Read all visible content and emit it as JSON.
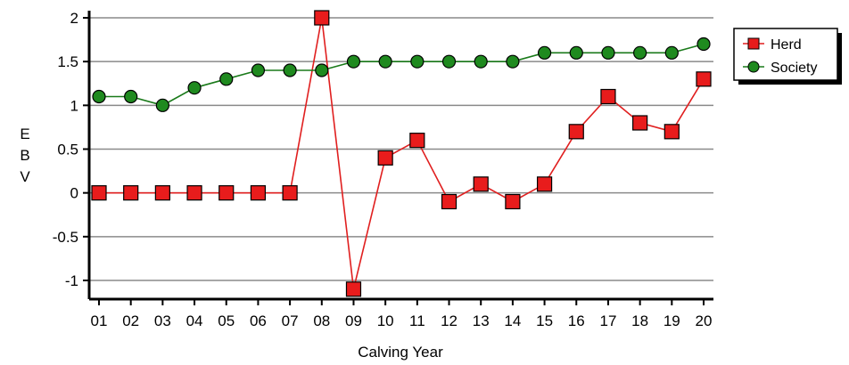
{
  "chart_data": {
    "type": "line",
    "title": "",
    "xlabel": "Calving Year",
    "ylabel": "E B V",
    "ylabel_letters": [
      "E",
      "B",
      "V"
    ],
    "categories": [
      "01",
      "02",
      "03",
      "04",
      "05",
      "06",
      "07",
      "08",
      "09",
      "10",
      "11",
      "12",
      "13",
      "14",
      "15",
      "16",
      "17",
      "18",
      "19",
      "20"
    ],
    "y_ticks": [
      "-1",
      "-0.5",
      "0",
      "0.5",
      "1",
      "1.5",
      "2"
    ],
    "ylim": [
      -1.2,
      2.05
    ],
    "grid": true,
    "legend_position": "right",
    "series": [
      {
        "name": "Herd",
        "marker": "square",
        "line_color": "#e01f1f",
        "marker_fill": "#e81c1c",
        "marker_stroke": "#000000",
        "values": [
          0,
          0,
          0,
          0,
          0,
          0,
          0,
          2.0,
          -1.1,
          0.4,
          0.6,
          -0.1,
          0.1,
          -0.1,
          0.1,
          0.7,
          1.1,
          0.8,
          0.7,
          1.3
        ]
      },
      {
        "name": "Society",
        "marker": "circle",
        "line_color": "#1a7a1a",
        "marker_fill": "#1f8a1f",
        "marker_stroke": "#000000",
        "values": [
          1.1,
          1.1,
          1.0,
          1.2,
          1.3,
          1.4,
          1.4,
          1.4,
          1.5,
          1.5,
          1.5,
          1.5,
          1.5,
          1.5,
          1.6,
          1.6,
          1.6,
          1.6,
          1.6,
          1.7
        ]
      }
    ]
  }
}
